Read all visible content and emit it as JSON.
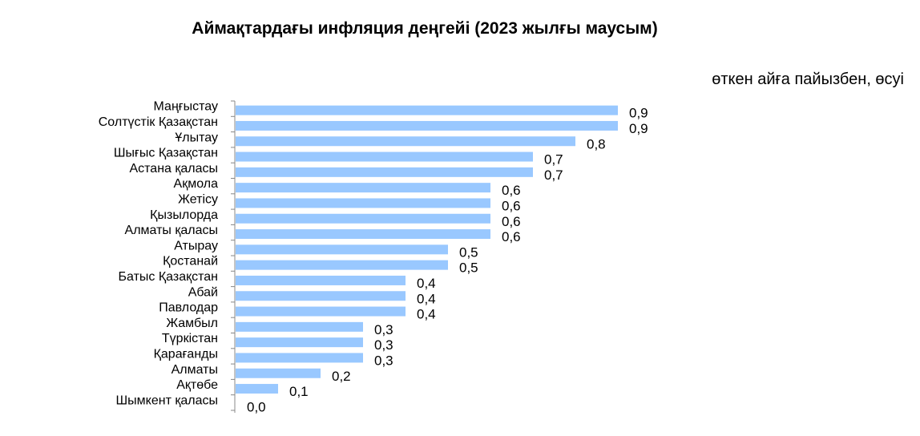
{
  "chart_data": {
    "type": "bar",
    "orientation": "horizontal",
    "title": "Аймақтардағы инфляция деңгейі (2023 жылғы маусым)",
    "unit_label": "өткен айға пайызбен, өсуі",
    "categories": [
      "Маңғыстау",
      "Солтүстік Қазақстан",
      "Ұлытау",
      "Шығыс Қазақстан",
      "Астана қаласы",
      "Ақмола",
      "Жетісу",
      "Қызылорда",
      "Алматы қаласы",
      "Атырау",
      "Қостанай",
      "Батыс Қазақстан",
      "Абай",
      "Павлодар",
      "Жамбыл",
      "Түркістан",
      "Қарағанды",
      "Алматы",
      "Ақтөбе",
      "Шымкент қаласы"
    ],
    "values": [
      0.9,
      0.9,
      0.8,
      0.7,
      0.7,
      0.6,
      0.6,
      0.6,
      0.6,
      0.5,
      0.5,
      0.4,
      0.4,
      0.4,
      0.3,
      0.3,
      0.3,
      0.2,
      0.1,
      0.0
    ],
    "value_labels": [
      "0,9",
      "0,9",
      "0,8",
      "0,7",
      "0,7",
      "0,6",
      "0,6",
      "0,6",
      "0,6",
      "0,5",
      "0,5",
      "0,4",
      "0,4",
      "0,4",
      "0,3",
      "0,3",
      "0,3",
      "0,2",
      "0,1",
      "0,0"
    ],
    "bar_color": "#99c8ff",
    "xlim": [
      0,
      0.9
    ],
    "grid": false,
    "legend": "none"
  }
}
